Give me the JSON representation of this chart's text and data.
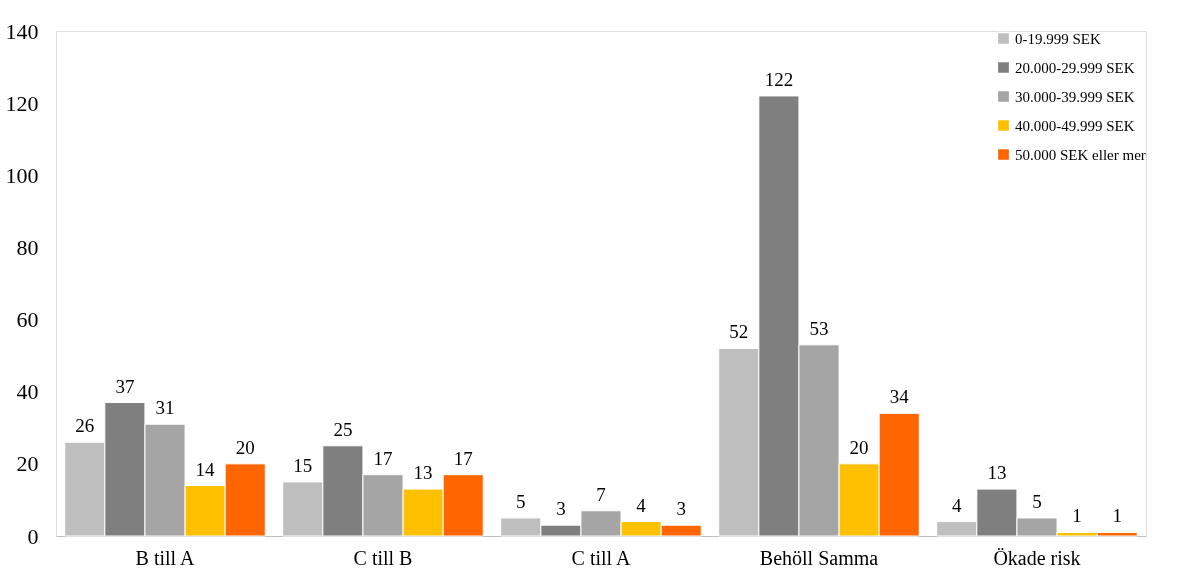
{
  "chart_data": {
    "type": "bar",
    "categories": [
      "B till A",
      "C till B",
      "C till A",
      "Behöll Samma",
      "Ökade risk"
    ],
    "series": [
      {
        "name": "0-19.999 SEK",
        "color": "#bfbfbf",
        "values": [
          26,
          15,
          5,
          52,
          4
        ]
      },
      {
        "name": "20.000-29.999 SEK",
        "color": "#7f7f7f",
        "values": [
          37,
          25,
          3,
          122,
          13
        ]
      },
      {
        "name": "30.000-39.999 SEK",
        "color": "#a5a5a5",
        "values": [
          31,
          17,
          7,
          53,
          5
        ]
      },
      {
        "name": "40.000-49.999 SEK",
        "color": "#ffc000",
        "values": [
          14,
          13,
          4,
          20,
          1
        ]
      },
      {
        "name": "50.000 SEK eller mer",
        "color": "#ff6600",
        "values": [
          20,
          17,
          3,
          34,
          1
        ]
      }
    ],
    "ylim": [
      0,
      140
    ],
    "yticks": [
      0,
      20,
      40,
      60,
      80,
      100,
      120,
      140
    ],
    "grid": false,
    "legend": "top right",
    "data_labels": true
  }
}
